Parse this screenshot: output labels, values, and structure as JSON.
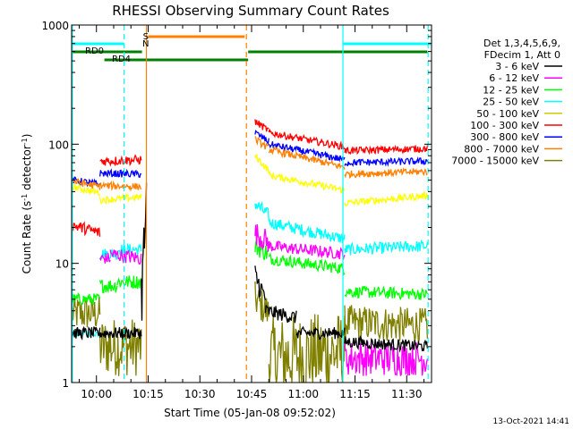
{
  "chart_data": {
    "type": "line",
    "title": "RHESSI Observing Summary Count Rates",
    "xlabel": "Start Time (05-Jan-08 09:52:02)",
    "ylabel": "Count Rate (s⁻¹ detector⁻¹)",
    "y_scale": "log",
    "ylim": [
      1,
      1000
    ],
    "xlim_minutes": [
      -7.2,
      97.2
    ],
    "x_ticks": [
      {
        "label": "10:00",
        "t": 0
      },
      {
        "label": "10:15",
        "t": 15
      },
      {
        "label": "10:30",
        "t": 30
      },
      {
        "label": "10:45",
        "t": 45
      },
      {
        "label": "11:00",
        "t": 60
      },
      {
        "label": "11:15",
        "t": 75
      },
      {
        "label": "11:30",
        "t": 90
      }
    ],
    "y_ticks": [
      {
        "label": "1",
        "v": 1
      },
      {
        "label": "10",
        "v": 10
      },
      {
        "label": "100",
        "v": 100
      },
      {
        "label": "1000",
        "v": 1000
      }
    ],
    "legend_header": [
      "Det 1,3,4,5,6,9,",
      "FDecim 1, Att 0"
    ],
    "legend_position": "right",
    "series": [
      {
        "name": "3 - 6 keV",
        "color": "#000000",
        "segments": [
          {
            "t0": -7,
            "t1": 1,
            "v0": 2.6,
            "v1": 2.6,
            "noise": 0.05
          },
          {
            "t0": 1,
            "t1": 13,
            "v0": 2.6,
            "v1": 2.6,
            "noise": 0.05
          },
          {
            "t0": 13,
            "t1": 14.5,
            "v0": 5,
            "v1": 30,
            "noise": 0.3
          },
          {
            "t0": 46,
            "t1": 49,
            "v0": 8,
            "v1": 5,
            "noise": 0.1
          },
          {
            "t0": 49,
            "t1": 58,
            "v0": 4,
            "v1": 3.5,
            "noise": 0.06
          },
          {
            "t0": 58,
            "t1": 72,
            "v0": 2.6,
            "v1": 2.6,
            "noise": 0.05
          },
          {
            "t0": 72,
            "t1": 96,
            "v0": 2.2,
            "v1": 2.0,
            "noise": 0.05
          }
        ]
      },
      {
        "name": "6 - 12 keV",
        "color": "#ff00ff",
        "segments": [
          {
            "t0": 1,
            "t1": 4,
            "v0": 11,
            "v1": 11,
            "noise": 0.05
          },
          {
            "t0": 4,
            "t1": 13,
            "v0": 12,
            "v1": 11,
            "noise": 0.06
          },
          {
            "t0": 46,
            "t1": 50,
            "v0": 18,
            "v1": 15,
            "noise": 0.1
          },
          {
            "t0": 50,
            "t1": 72,
            "v0": 14,
            "v1": 12,
            "noise": 0.05
          },
          {
            "t0": 72,
            "t1": 96,
            "v0": 1.6,
            "v1": 1.6,
            "noise": 0.15
          }
        ]
      },
      {
        "name": "12 - 25 keV",
        "color": "#00ff00",
        "segments": [
          {
            "t0": -7,
            "t1": 1,
            "v0": 5,
            "v1": 5,
            "noise": 0.05
          },
          {
            "t0": 1,
            "t1": 6,
            "v0": 6.5,
            "v1": 6.5,
            "noise": 0.06
          },
          {
            "t0": 6,
            "t1": 13,
            "v0": 7,
            "v1": 7,
            "noise": 0.06
          },
          {
            "t0": 46,
            "t1": 50,
            "v0": 14,
            "v1": 12,
            "noise": 0.08
          },
          {
            "t0": 50,
            "t1": 72,
            "v0": 11,
            "v1": 9,
            "noise": 0.05
          },
          {
            "t0": 72,
            "t1": 96,
            "v0": 5.8,
            "v1": 5.5,
            "noise": 0.05
          }
        ]
      },
      {
        "name": "25 - 50 keV",
        "color": "#00ffff",
        "segments": [
          {
            "t0": -7,
            "t1": 1,
            "v0": 2.6,
            "v1": 2.6,
            "noise": 0.03
          },
          {
            "t0": 1,
            "t1": 6,
            "v0": 12,
            "v1": 12,
            "noise": 0.05
          },
          {
            "t0": 6,
            "t1": 13,
            "v0": 13,
            "v1": 13,
            "noise": 0.05
          },
          {
            "t0": 46,
            "t1": 50,
            "v0": 32,
            "v1": 25,
            "noise": 0.06
          },
          {
            "t0": 50,
            "t1": 72,
            "v0": 22,
            "v1": 16,
            "noise": 0.05
          },
          {
            "t0": 72,
            "t1": 96,
            "v0": 13,
            "v1": 14,
            "noise": 0.05
          }
        ]
      },
      {
        "name": "50 - 100 keV",
        "color": "#ffff00",
        "swatch": "#cccc00",
        "segments": [
          {
            "t0": -7,
            "t1": 1,
            "v0": 44,
            "v1": 39,
            "noise": 0.03
          },
          {
            "t0": 1,
            "t1": 13,
            "v0": 34,
            "v1": 36,
            "noise": 0.03
          },
          {
            "t0": 46,
            "t1": 50,
            "v0": 80,
            "v1": 60,
            "noise": 0.03
          },
          {
            "t0": 50,
            "t1": 72,
            "v0": 55,
            "v1": 41,
            "noise": 0.03
          },
          {
            "t0": 72,
            "t1": 96,
            "v0": 32,
            "v1": 37,
            "noise": 0.03
          }
        ]
      },
      {
        "name": "100 - 300 keV",
        "color": "#ff0000",
        "segments": [
          {
            "t0": -7,
            "t1": 1,
            "v0": 21,
            "v1": 18,
            "noise": 0.05
          },
          {
            "t0": 1,
            "t1": 13,
            "v0": 72,
            "v1": 74,
            "noise": 0.04
          },
          {
            "t0": 46,
            "t1": 50,
            "v0": 155,
            "v1": 130,
            "noise": 0.03
          },
          {
            "t0": 50,
            "t1": 72,
            "v0": 125,
            "v1": 95,
            "noise": 0.03
          },
          {
            "t0": 72,
            "t1": 96,
            "v0": 88,
            "v1": 92,
            "noise": 0.03
          }
        ]
      },
      {
        "name": "300 - 800 keV",
        "color": "#0000ff",
        "segments": [
          {
            "t0": -7,
            "t1": 1,
            "v0": 50,
            "v1": 46,
            "noise": 0.03
          },
          {
            "t0": 1,
            "t1": 13,
            "v0": 57,
            "v1": 56,
            "noise": 0.03
          },
          {
            "t0": 46,
            "t1": 50,
            "v0": 125,
            "v1": 105,
            "noise": 0.03
          },
          {
            "t0": 50,
            "t1": 72,
            "v0": 100,
            "v1": 74,
            "noise": 0.03
          },
          {
            "t0": 72,
            "t1": 96,
            "v0": 70,
            "v1": 72,
            "noise": 0.03
          }
        ]
      },
      {
        "name": "800 - 7000 keV",
        "color": "#ff8000",
        "segments": [
          {
            "t0": -7,
            "t1": 1,
            "v0": 49,
            "v1": 44,
            "noise": 0.03
          },
          {
            "t0": 1,
            "t1": 13,
            "v0": 45,
            "v1": 44,
            "noise": 0.03
          },
          {
            "t0": 46,
            "t1": 50,
            "v0": 110,
            "v1": 92,
            "noise": 0.03
          },
          {
            "t0": 50,
            "t1": 72,
            "v0": 90,
            "v1": 64,
            "noise": 0.03
          },
          {
            "t0": 72,
            "t1": 96,
            "v0": 56,
            "v1": 59,
            "noise": 0.03
          }
        ]
      },
      {
        "name": "7000 - 15000 keV",
        "color": "#808000",
        "segments": [
          {
            "t0": -7,
            "t1": 1,
            "v0": 3.8,
            "v1": 3.8,
            "noise": 0.15
          },
          {
            "t0": 1,
            "t1": 13,
            "v0": 2.0,
            "v1": 2.0,
            "noise": 0.25
          },
          {
            "t0": 46,
            "t1": 50,
            "v0": 5,
            "v1": 3.8,
            "noise": 0.15
          },
          {
            "t0": 50,
            "t1": 72,
            "v0": 1.6,
            "v1": 1.8,
            "noise": 0.35
          },
          {
            "t0": 72,
            "t1": 96,
            "v0": 3.2,
            "v1": 3.0,
            "noise": 0.15
          }
        ]
      }
    ],
    "annotations": {
      "saa_label": "S",
      "night_label": "N",
      "rd0_label": "RD0",
      "rd4_label": "RD4",
      "saa_bar": {
        "t0": 15,
        "t1": 43
      },
      "night_bars": [
        {
          "t0": -7,
          "t1": 8
        },
        {
          "t0": 71.5,
          "t1": 97
        }
      ],
      "rd0_bars": [
        {
          "t0": -7,
          "t1": 13.2
        },
        {
          "t0": 44,
          "t1": 96
        }
      ],
      "rd4_bar": {
        "t0": 2.3,
        "t1": 44
      },
      "orange_solid_lines": [
        14.5
      ],
      "orange_dashed_lines": [
        43.5
      ],
      "cyan_solid_lines": [
        -7,
        71.5
      ],
      "cyan_dashed_lines": [
        8,
        96.2
      ]
    },
    "timestamp": "13-Oct-2021 14:41"
  }
}
